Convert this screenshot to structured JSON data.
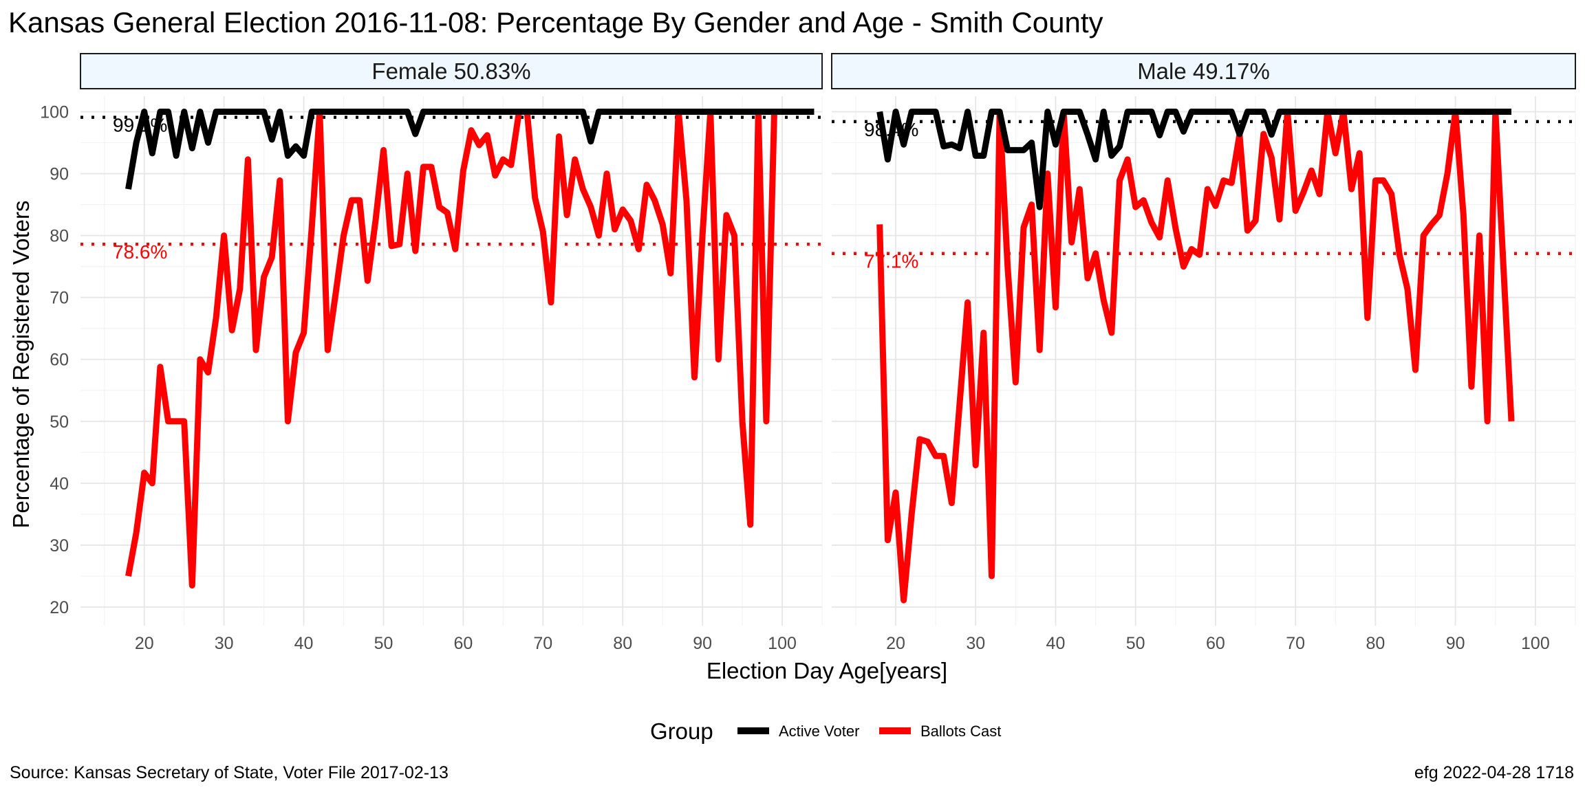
{
  "title": "Kansas General Election 2016-11-08:  Percentage By Gender and Age - Smith County",
  "caption_left": "Source:  Kansas Secretary of State, Voter File  2017-02-13",
  "caption_right": "efg 2022-04-28 1718",
  "colors": {
    "active": "#000000",
    "ballots": "#ff0000",
    "strip_fill": "#f0f8ff"
  },
  "chart_data": {
    "type": "line",
    "xlabel": "Election Day Age[years]",
    "ylabel": "Percentage of Registered Voters",
    "xlim": [
      12,
      105
    ],
    "ylim": [
      17,
      102.5
    ],
    "x_ticks": [
      20,
      30,
      40,
      50,
      60,
      70,
      80,
      90,
      100
    ],
    "y_ticks": [
      20,
      30,
      40,
      50,
      60,
      70,
      80,
      90,
      100
    ],
    "grid": true,
    "legend": {
      "title": "Group",
      "position": "bottom",
      "entries": [
        {
          "name": "Active Voter",
          "color": "#000000"
        },
        {
          "name": "Ballots Cast",
          "color": "#ff0000"
        }
      ]
    },
    "panels": [
      {
        "label": "Female 50.83%",
        "mean_active": 99.1,
        "mean_active_label": "99.1%",
        "mean_ballots": 78.6,
        "mean_ballots_label": "78.6%",
        "series": [
          {
            "name": "Active Voter",
            "x": [
              18,
              19,
              20,
              21,
              22,
              23,
              24,
              25,
              26,
              27,
              28,
              29,
              30,
              31,
              32,
              33,
              34,
              35,
              36,
              37,
              38,
              39,
              40,
              41,
              42,
              43,
              44,
              45,
              46,
              47,
              48,
              49,
              50,
              51,
              52,
              53,
              54,
              55,
              56,
              57,
              58,
              59,
              60,
              61,
              62,
              63,
              64,
              65,
              66,
              67,
              68,
              69,
              70,
              71,
              72,
              73,
              74,
              75,
              76,
              77,
              78,
              79,
              80,
              81,
              82,
              83,
              84,
              85,
              86,
              87,
              88,
              89,
              90,
              91,
              92,
              93,
              94,
              95,
              96,
              97,
              98,
              99,
              100,
              101,
              102,
              103,
              104
            ],
            "y": [
              87.5,
              95,
              100,
              93.3,
              100,
              100,
              92.9,
              100,
              94.1,
              100,
              95,
              100,
              100,
              100,
              100,
              100,
              100,
              100,
              95.5,
              100,
              92.9,
              94.4,
              92.9,
              100,
              100,
              100,
              100,
              100,
              100,
              100,
              100,
              100,
              100,
              100,
              100,
              100,
              96.4,
              100,
              100,
              100,
              100,
              100,
              100,
              100,
              100,
              100,
              100,
              100,
              100,
              100,
              100,
              100,
              100,
              100,
              100,
              100,
              100,
              100,
              95.2,
              100,
              100,
              100,
              100,
              100,
              100,
              100,
              100,
              100,
              100,
              100,
              100,
              100,
              100,
              100,
              100,
              100,
              100,
              100,
              100,
              100,
              100,
              100,
              100,
              100,
              100,
              100,
              100
            ]
          },
          {
            "name": "Ballots Cast",
            "x": [
              18,
              19,
              20,
              21,
              22,
              23,
              24,
              25,
              26,
              27,
              28,
              29,
              30,
              31,
              32,
              33,
              34,
              35,
              36,
              37,
              38,
              39,
              40,
              41,
              42,
              43,
              44,
              45,
              46,
              47,
              48,
              49,
              50,
              51,
              52,
              53,
              54,
              55,
              56,
              57,
              58,
              59,
              60,
              61,
              62,
              63,
              64,
              65,
              66,
              67,
              68,
              69,
              70,
              71,
              72,
              73,
              74,
              75,
              76,
              77,
              78,
              79,
              80,
              81,
              82,
              83,
              84,
              85,
              86,
              87,
              88,
              89,
              90,
              91,
              92,
              93,
              94,
              95,
              96,
              97,
              98,
              99,
              100,
              101,
              102,
              103,
              104
            ],
            "y": [
              25,
              32,
              41.7,
              40,
              58.8,
              50,
              50,
              50,
              23.5,
              60,
              57.9,
              66.7,
              80,
              64.7,
              71.4,
              92.3,
              61.5,
              73.3,
              76.5,
              88.9,
              50,
              61.1,
              64.3,
              81.3,
              100,
              61.5,
              70.6,
              80,
              85.7,
              85.7,
              72.7,
              82.4,
              93.8,
              78.3,
              78.6,
              90,
              77.5,
              91.1,
              91.1,
              84.6,
              83.7,
              77.8,
              90.5,
              97,
              94.6,
              96.2,
              89.7,
              92.3,
              91.4,
              100,
              100,
              86.1,
              80.6,
              69.2,
              96,
              83.3,
              92.3,
              87.5,
              84.6,
              80,
              90,
              81,
              84.2,
              82.4,
              77.8,
              88.2,
              85.7,
              81.8,
              73.9,
              100,
              85.7,
              57.1,
              80,
              100,
              60,
              83.3,
              80,
              50,
              33.3,
              100,
              50,
              100,
              100,
              100,
              100,
              100,
              100
            ]
          }
        ]
      },
      {
        "label": "Male 49.17%",
        "mean_active": 98.4,
        "mean_active_label": "98.4%",
        "mean_ballots": 77.1,
        "mean_ballots_label": "77.1%",
        "series": [
          {
            "name": "Active Voter",
            "x": [
              18,
              19,
              20,
              21,
              22,
              23,
              24,
              25,
              26,
              27,
              28,
              29,
              30,
              31,
              32,
              33,
              34,
              35,
              36,
              37,
              38,
              39,
              40,
              41,
              42,
              43,
              44,
              45,
              46,
              47,
              48,
              49,
              50,
              51,
              52,
              53,
              54,
              55,
              56,
              57,
              58,
              59,
              60,
              61,
              62,
              63,
              64,
              65,
              66,
              67,
              68,
              69,
              70,
              71,
              72,
              73,
              74,
              75,
              76,
              77,
              78,
              79,
              80,
              81,
              82,
              83,
              84,
              85,
              86,
              87,
              88,
              89,
              90,
              91,
              92,
              93,
              94,
              95,
              96,
              97
            ],
            "y": [
              100,
              92.3,
              100,
              94.7,
              100,
              100,
              100,
              100,
              94.4,
              94.7,
              94.1,
              100,
              92.9,
              92.9,
              100,
              100,
              93.8,
              93.8,
              93.8,
              95,
              84.6,
              100,
              94.7,
              100,
              100,
              100,
              96.3,
              92.3,
              100,
              92.9,
              94.4,
              100,
              100,
              100,
              100,
              96.2,
              100,
              100,
              96.8,
              100,
              100,
              100,
              100,
              100,
              100,
              96.4,
              100,
              100,
              100,
              96.3,
              100,
              100,
              100,
              100,
              100,
              100,
              100,
              100,
              100,
              100,
              100,
              100,
              100,
              100,
              100,
              100,
              100,
              100,
              100,
              100,
              100,
              100,
              100,
              100,
              100,
              100,
              100,
              100,
              100,
              100
            ]
          },
          {
            "name": "Ballots Cast",
            "x": [
              18,
              19,
              20,
              21,
              22,
              23,
              24,
              25,
              26,
              27,
              28,
              29,
              30,
              31,
              32,
              33,
              34,
              35,
              36,
              37,
              38,
              39,
              40,
              41,
              42,
              43,
              44,
              45,
              46,
              47,
              48,
              49,
              50,
              51,
              52,
              53,
              54,
              55,
              56,
              57,
              58,
              59,
              60,
              61,
              62,
              63,
              64,
              65,
              66,
              67,
              68,
              69,
              70,
              71,
              72,
              73,
              74,
              75,
              76,
              77,
              78,
              79,
              80,
              81,
              82,
              83,
              84,
              85,
              86,
              87,
              88,
              89,
              90,
              91,
              92,
              93,
              94,
              95,
              96,
              97
            ],
            "y": [
              81.8,
              30.8,
              38.5,
              21.1,
              35,
              47.1,
              46.7,
              44.4,
              44.4,
              36.8,
              52.9,
              69.2,
              42.9,
              64.3,
              25,
              100,
              75,
              56.3,
              81.3,
              85,
              61.5,
              90,
              68.4,
              100,
              78.9,
              87.5,
              73.1,
              77.1,
              69.6,
              64.3,
              88.9,
              92.3,
              84.6,
              85.7,
              82.1,
              79.7,
              88.9,
              81.2,
              75,
              77.8,
              76.9,
              87.5,
              84.8,
              88.9,
              88.5,
              96.3,
              80.8,
              82.4,
              96.4,
              92.6,
              82.6,
              100,
              84,
              87,
              90.5,
              86.7,
              100,
              93.3,
              100,
              87.5,
              93.3,
              66.7,
              88.9,
              88.9,
              86.7,
              76.9,
              71.4,
              58.3,
              80,
              81.8,
              83.3,
              90,
              100,
              83.3,
              55.6,
              80,
              50,
              100,
              75,
              50
            ]
          }
        ]
      }
    ]
  }
}
